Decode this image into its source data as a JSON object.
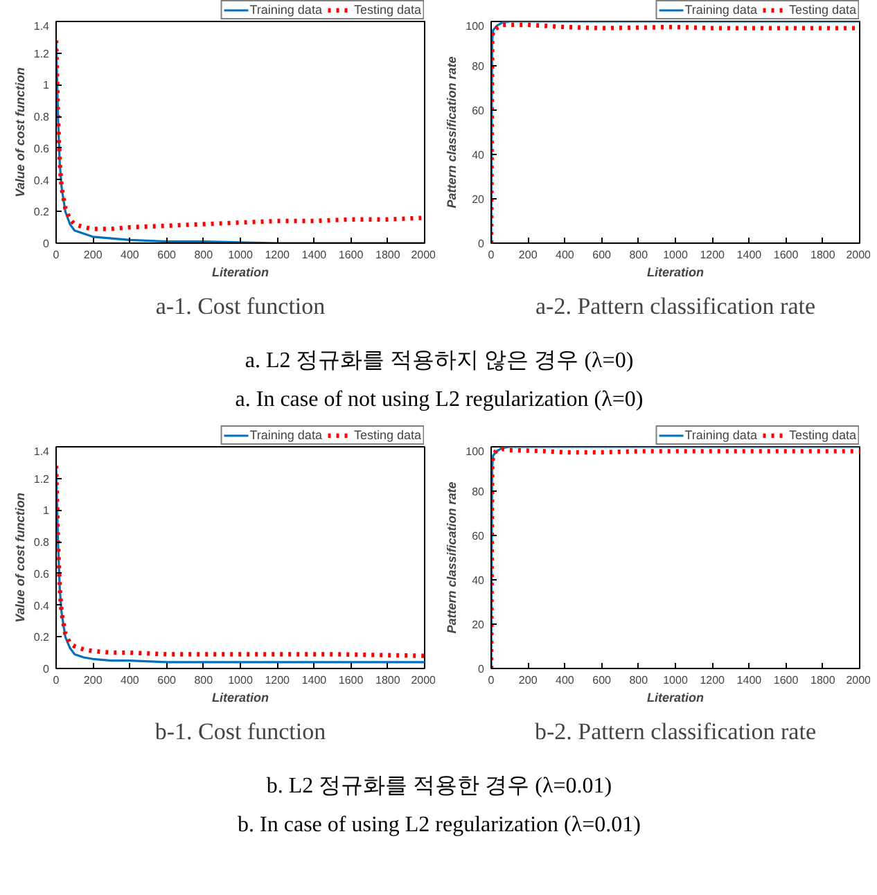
{
  "chart_data": [
    {
      "type": "line",
      "title": "a-1. Cost function",
      "xlabel": "Literation",
      "ylabel": "Value of cost function",
      "xlim": [
        0,
        2000
      ],
      "ylim": [
        0,
        1.4
      ],
      "xticks": [
        0,
        200,
        400,
        600,
        800,
        1000,
        1200,
        1400,
        1600,
        1800,
        2000
      ],
      "yticks": [
        0,
        0.2,
        0.4,
        0.6,
        0.8,
        1,
        1.2,
        1.4
      ],
      "grid": false,
      "legend": "top right",
      "annotations": [
        "a. L2 정규화를 적용하지 않은 경우 (λ=0)",
        "a. In case of not using L2 regularization (λ=0)"
      ],
      "series": [
        {
          "name": "Training data",
          "color": "#0072bd",
          "line_style": "solid",
          "x": [
            0,
            10,
            20,
            30,
            50,
            75,
            100,
            150,
            200,
            300,
            400,
            600,
            800,
            1200,
            2000
          ],
          "values": [
            1.28,
            0.8,
            0.5,
            0.35,
            0.2,
            0.12,
            0.08,
            0.06,
            0.04,
            0.03,
            0.02,
            0.01,
            0.01,
            0.0,
            0.0
          ]
        },
        {
          "name": "Testing data",
          "color": "#ff0000",
          "line_style": "dotted",
          "x": [
            0,
            10,
            20,
            30,
            50,
            75,
            100,
            150,
            200,
            250,
            300,
            400,
            600,
            800,
            1000,
            1200,
            1400,
            1600,
            1800,
            2000
          ],
          "values": [
            1.28,
            0.8,
            0.5,
            0.35,
            0.22,
            0.15,
            0.12,
            0.1,
            0.09,
            0.09,
            0.09,
            0.1,
            0.11,
            0.12,
            0.13,
            0.14,
            0.14,
            0.15,
            0.15,
            0.16
          ]
        }
      ]
    },
    {
      "type": "line",
      "title": "a-2. Pattern classification rate",
      "xlabel": "Literation",
      "ylabel": "Pattern classification rate",
      "xlim": [
        0,
        2000
      ],
      "ylim": [
        0,
        100
      ],
      "xticks": [
        0,
        200,
        400,
        600,
        800,
        1000,
        1200,
        1400,
        1600,
        1800,
        2000
      ],
      "yticks": [
        0,
        20,
        40,
        60,
        80,
        100
      ],
      "grid": false,
      "legend": "top right",
      "series": [
        {
          "name": "Training data",
          "color": "#0072bd",
          "line_style": "solid",
          "x": [
            0,
            5,
            10,
            30,
            60,
            100,
            2000
          ],
          "values": [
            0,
            90,
            96,
            98,
            99.5,
            100,
            100
          ]
        },
        {
          "name": "Testing data",
          "color": "#ff0000",
          "line_style": "dotted",
          "x": [
            0,
            5,
            10,
            30,
            60,
            200,
            400,
            600,
            1000,
            1200,
            2000
          ],
          "values": [
            0,
            90,
            96,
            97,
            98.5,
            98.5,
            97.5,
            97,
            97.5,
            97,
            97
          ]
        }
      ]
    },
    {
      "type": "line",
      "title": "b-1. Cost function",
      "xlabel": "Literation",
      "ylabel": "Value of cost function",
      "xlim": [
        0,
        2000
      ],
      "ylim": [
        0,
        1.4
      ],
      "xticks": [
        0,
        200,
        400,
        600,
        800,
        1000,
        1200,
        1400,
        1600,
        1800,
        2000
      ],
      "yticks": [
        0,
        0.2,
        0.4,
        0.6,
        0.8,
        1,
        1.2,
        1.4
      ],
      "grid": false,
      "legend": "top right",
      "annotations": [
        "b. L2 정규화를 적용한 경우 (λ=0.01)",
        "b. In case of using L2 regularization (λ=0.01)"
      ],
      "series": [
        {
          "name": "Training data",
          "color": "#0072bd",
          "line_style": "solid",
          "x": [
            0,
            10,
            20,
            30,
            50,
            75,
            100,
            150,
            200,
            300,
            400,
            600,
            800,
            1000,
            1500,
            2000
          ],
          "values": [
            1.28,
            0.8,
            0.5,
            0.35,
            0.2,
            0.13,
            0.09,
            0.07,
            0.06,
            0.05,
            0.05,
            0.04,
            0.04,
            0.04,
            0.04,
            0.04
          ]
        },
        {
          "name": "Testing data",
          "color": "#ff0000",
          "line_style": "dotted",
          "x": [
            0,
            10,
            20,
            30,
            50,
            75,
            100,
            150,
            200,
            300,
            400,
            600,
            1000,
            1500,
            2000
          ],
          "values": [
            1.28,
            0.8,
            0.5,
            0.35,
            0.22,
            0.16,
            0.14,
            0.12,
            0.11,
            0.1,
            0.1,
            0.09,
            0.09,
            0.09,
            0.08
          ]
        }
      ]
    },
    {
      "type": "line",
      "title": "b-2. Pattern classification rate",
      "xlabel": "Literation",
      "ylabel": "Pattern classification rate",
      "xlim": [
        0,
        2000
      ],
      "ylim": [
        0,
        100
      ],
      "xticks": [
        0,
        200,
        400,
        600,
        800,
        1000,
        1200,
        1400,
        1600,
        1800,
        2000
      ],
      "yticks": [
        0,
        20,
        40,
        60,
        80,
        100
      ],
      "grid": false,
      "legend": "top right",
      "series": [
        {
          "name": "Training data",
          "color": "#0072bd",
          "line_style": "solid",
          "x": [
            0,
            5,
            10,
            30,
            60,
            100,
            2000
          ],
          "values": [
            0,
            90,
            96,
            98,
            99.5,
            100,
            100
          ]
        },
        {
          "name": "Testing data",
          "color": "#ff0000",
          "line_style": "dotted",
          "x": [
            0,
            5,
            10,
            30,
            60,
            100,
            300,
            400,
            600,
            800,
            2000
          ],
          "values": [
            0,
            90,
            96,
            98.5,
            99,
            98.5,
            98,
            97.5,
            97.5,
            98,
            98
          ]
        }
      ]
    }
  ]
}
